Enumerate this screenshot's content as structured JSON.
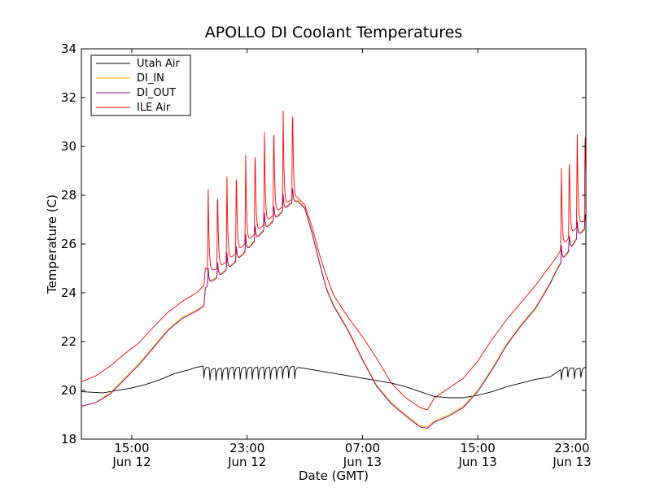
{
  "chart_data": {
    "type": "line",
    "title": "APOLLO DI Coolant Temperatures",
    "xlabel": "Date (GMT)",
    "ylabel": "Temperature (C)",
    "x_unit": "hours since Jun 12 00:00 GMT",
    "xlim": [
      11.5,
      46.5
    ],
    "ylim": [
      18,
      34
    ],
    "y_ticks": [
      18,
      20,
      22,
      24,
      26,
      28,
      30,
      32,
      34
    ],
    "x_ticks": [
      {
        "value": 15,
        "time": "15:00",
        "date": "Jun 12"
      },
      {
        "value": 23,
        "time": "23:00",
        "date": "Jun 12"
      },
      {
        "value": 31,
        "time": "07:00",
        "date": "Jun 13"
      },
      {
        "value": 39,
        "time": "15:00",
        "date": "Jun 13"
      },
      {
        "value": 47,
        "time": "23:00",
        "date": "Jun 13"
      }
    ],
    "legend_position": "top-left",
    "series": [
      {
        "name": "Utah Air",
        "color": "#000000",
        "points": [
          [
            11.5,
            19.95
          ],
          [
            13,
            19.9
          ],
          [
            14,
            20.0
          ],
          [
            15,
            20.1
          ],
          [
            16,
            20.25
          ],
          [
            17,
            20.45
          ],
          [
            18,
            20.7
          ],
          [
            19,
            20.85
          ],
          [
            19.5,
            20.95
          ],
          [
            20,
            21.0
          ],
          [
            20.5,
            20.9
          ],
          [
            21,
            20.9
          ],
          [
            22,
            20.95
          ],
          [
            23,
            20.95
          ],
          [
            24,
            20.95
          ],
          [
            25,
            20.95
          ],
          [
            26,
            21.0
          ],
          [
            27,
            20.9
          ],
          [
            28,
            20.8
          ],
          [
            29,
            20.7
          ],
          [
            30,
            20.6
          ],
          [
            31,
            20.5
          ],
          [
            32,
            20.4
          ],
          [
            33,
            20.3
          ],
          [
            34,
            20.15
          ],
          [
            35,
            19.95
          ],
          [
            36,
            19.75
          ],
          [
            37,
            19.7
          ],
          [
            38,
            19.7
          ],
          [
            39,
            19.8
          ],
          [
            40,
            19.95
          ],
          [
            41,
            20.15
          ],
          [
            42,
            20.3
          ],
          [
            43,
            20.45
          ],
          [
            44,
            20.55
          ],
          [
            45,
            20.95
          ],
          [
            46,
            20.9
          ],
          [
            46.5,
            20.95
          ]
        ],
        "dips": [
          {
            "start": 20,
            "end": 26.5,
            "spacing": 0.42,
            "depth": 0.5
          },
          {
            "start": 44.8,
            "end": 46.5,
            "spacing": 0.45,
            "depth": 0.45
          }
        ]
      },
      {
        "name": "DI_IN",
        "color": "#ffa500",
        "points": [
          [
            11.5,
            19.35
          ],
          [
            12.5,
            19.5
          ],
          [
            13.5,
            19.9
          ],
          [
            14.5,
            20.5
          ],
          [
            15.5,
            21.1
          ],
          [
            16.5,
            21.8
          ],
          [
            17.5,
            22.5
          ],
          [
            18.5,
            23.0
          ],
          [
            19.5,
            23.3
          ],
          [
            20,
            23.5
          ],
          [
            20.1,
            24.2
          ],
          [
            20.5,
            24.5
          ],
          [
            21,
            24.7
          ],
          [
            22,
            25.2
          ],
          [
            23,
            25.8
          ],
          [
            24,
            26.5
          ],
          [
            25,
            27.1
          ],
          [
            26,
            27.7
          ],
          [
            26.5,
            27.8
          ],
          [
            27,
            27.5
          ],
          [
            27.5,
            26.5
          ],
          [
            28,
            25.3
          ],
          [
            28.5,
            24.2
          ],
          [
            29,
            23.5
          ],
          [
            30,
            22.5
          ],
          [
            31,
            21.3
          ],
          [
            32,
            20.2
          ],
          [
            33,
            19.5
          ],
          [
            34,
            19.0
          ],
          [
            35,
            18.55
          ],
          [
            35.5,
            18.5
          ],
          [
            36,
            18.75
          ],
          [
            37,
            19.0
          ],
          [
            38,
            19.35
          ],
          [
            39,
            20.0
          ],
          [
            40,
            20.9
          ],
          [
            41,
            21.9
          ],
          [
            42,
            22.7
          ],
          [
            43,
            23.4
          ],
          [
            44,
            24.4
          ],
          [
            44.5,
            25.0
          ],
          [
            45,
            25.5
          ],
          [
            45.5,
            25.9
          ],
          [
            46,
            26.4
          ],
          [
            46.5,
            26.7
          ]
        ],
        "spikes": [
          {
            "start": 20.3,
            "end": 26.5,
            "spacing": 0.65,
            "height": 0.6
          },
          {
            "start": 44.8,
            "end": 46.5,
            "spacing": 0.55,
            "height": 0.6
          }
        ]
      },
      {
        "name": "DI_OUT",
        "color": "#800080",
        "points": [
          [
            11.5,
            19.35
          ],
          [
            12.5,
            19.5
          ],
          [
            13.5,
            19.85
          ],
          [
            14.5,
            20.45
          ],
          [
            15.5,
            21.05
          ],
          [
            16.5,
            21.75
          ],
          [
            17.5,
            22.45
          ],
          [
            18.5,
            22.95
          ],
          [
            19.5,
            23.25
          ],
          [
            20,
            23.45
          ],
          [
            20.1,
            24.2
          ],
          [
            20.5,
            24.45
          ],
          [
            21,
            24.65
          ],
          [
            22,
            25.15
          ],
          [
            23,
            25.75
          ],
          [
            24,
            26.45
          ],
          [
            25,
            27.05
          ],
          [
            26,
            27.65
          ],
          [
            26.5,
            27.75
          ],
          [
            27,
            27.45
          ],
          [
            27.5,
            26.45
          ],
          [
            28,
            25.25
          ],
          [
            28.5,
            24.15
          ],
          [
            29,
            23.45
          ],
          [
            30,
            22.45
          ],
          [
            31,
            21.25
          ],
          [
            32,
            20.15
          ],
          [
            33,
            19.45
          ],
          [
            34,
            18.95
          ],
          [
            35,
            18.5
          ],
          [
            35.5,
            18.45
          ],
          [
            36,
            18.7
          ],
          [
            37,
            18.95
          ],
          [
            38,
            19.3
          ],
          [
            39,
            19.95
          ],
          [
            40,
            20.85
          ],
          [
            41,
            21.85
          ],
          [
            42,
            22.65
          ],
          [
            43,
            23.35
          ],
          [
            44,
            24.35
          ],
          [
            44.5,
            24.95
          ],
          [
            45,
            25.45
          ],
          [
            45.5,
            25.85
          ],
          [
            46,
            26.35
          ],
          [
            46.5,
            26.65
          ]
        ],
        "spikes": [
          {
            "start": 20.3,
            "end": 26.5,
            "spacing": 0.65,
            "height": 0.7
          },
          {
            "start": 44.8,
            "end": 46.5,
            "spacing": 0.55,
            "height": 0.7
          }
        ]
      },
      {
        "name": "ILE Air",
        "color": "#ff0000",
        "points": [
          [
            11.5,
            20.35
          ],
          [
            12.5,
            20.6
          ],
          [
            13.5,
            21.0
          ],
          [
            14.5,
            21.5
          ],
          [
            15.5,
            21.95
          ],
          [
            16.5,
            22.6
          ],
          [
            17.5,
            23.2
          ],
          [
            18.5,
            23.65
          ],
          [
            19.5,
            24.0
          ],
          [
            20,
            24.3
          ],
          [
            20.1,
            25.0
          ],
          [
            20.5,
            24.9
          ],
          [
            21,
            25.0
          ],
          [
            22,
            25.5
          ],
          [
            23,
            26.1
          ],
          [
            24,
            26.7
          ],
          [
            25,
            27.3
          ],
          [
            26,
            27.8
          ],
          [
            26.5,
            27.9
          ],
          [
            27,
            27.6
          ],
          [
            27.5,
            26.7
          ],
          [
            28,
            25.6
          ],
          [
            28.5,
            24.7
          ],
          [
            29,
            23.9
          ],
          [
            30,
            23.0
          ],
          [
            31,
            22.2
          ],
          [
            32,
            21.3
          ],
          [
            33,
            20.3
          ],
          [
            34,
            19.7
          ],
          [
            35,
            19.3
          ],
          [
            35.5,
            19.2
          ],
          [
            36,
            19.7
          ],
          [
            37,
            20.1
          ],
          [
            38,
            20.5
          ],
          [
            39,
            21.2
          ],
          [
            40,
            22.1
          ],
          [
            41,
            22.9
          ],
          [
            42,
            23.6
          ],
          [
            43,
            24.3
          ],
          [
            44,
            25.1
          ],
          [
            44.5,
            25.5
          ],
          [
            45,
            26.0
          ],
          [
            45.5,
            26.4
          ],
          [
            46,
            26.8
          ],
          [
            46.5,
            27.0
          ]
        ],
        "spikes": [
          {
            "start": 20.3,
            "end": 26.5,
            "spacing": 0.65,
            "height_start": 3.3,
            "height_end": 4.0
          },
          {
            "start": 44.8,
            "end": 46.5,
            "spacing": 0.55,
            "height_start": 3.3,
            "height_end": 4.0
          }
        ]
      }
    ]
  }
}
